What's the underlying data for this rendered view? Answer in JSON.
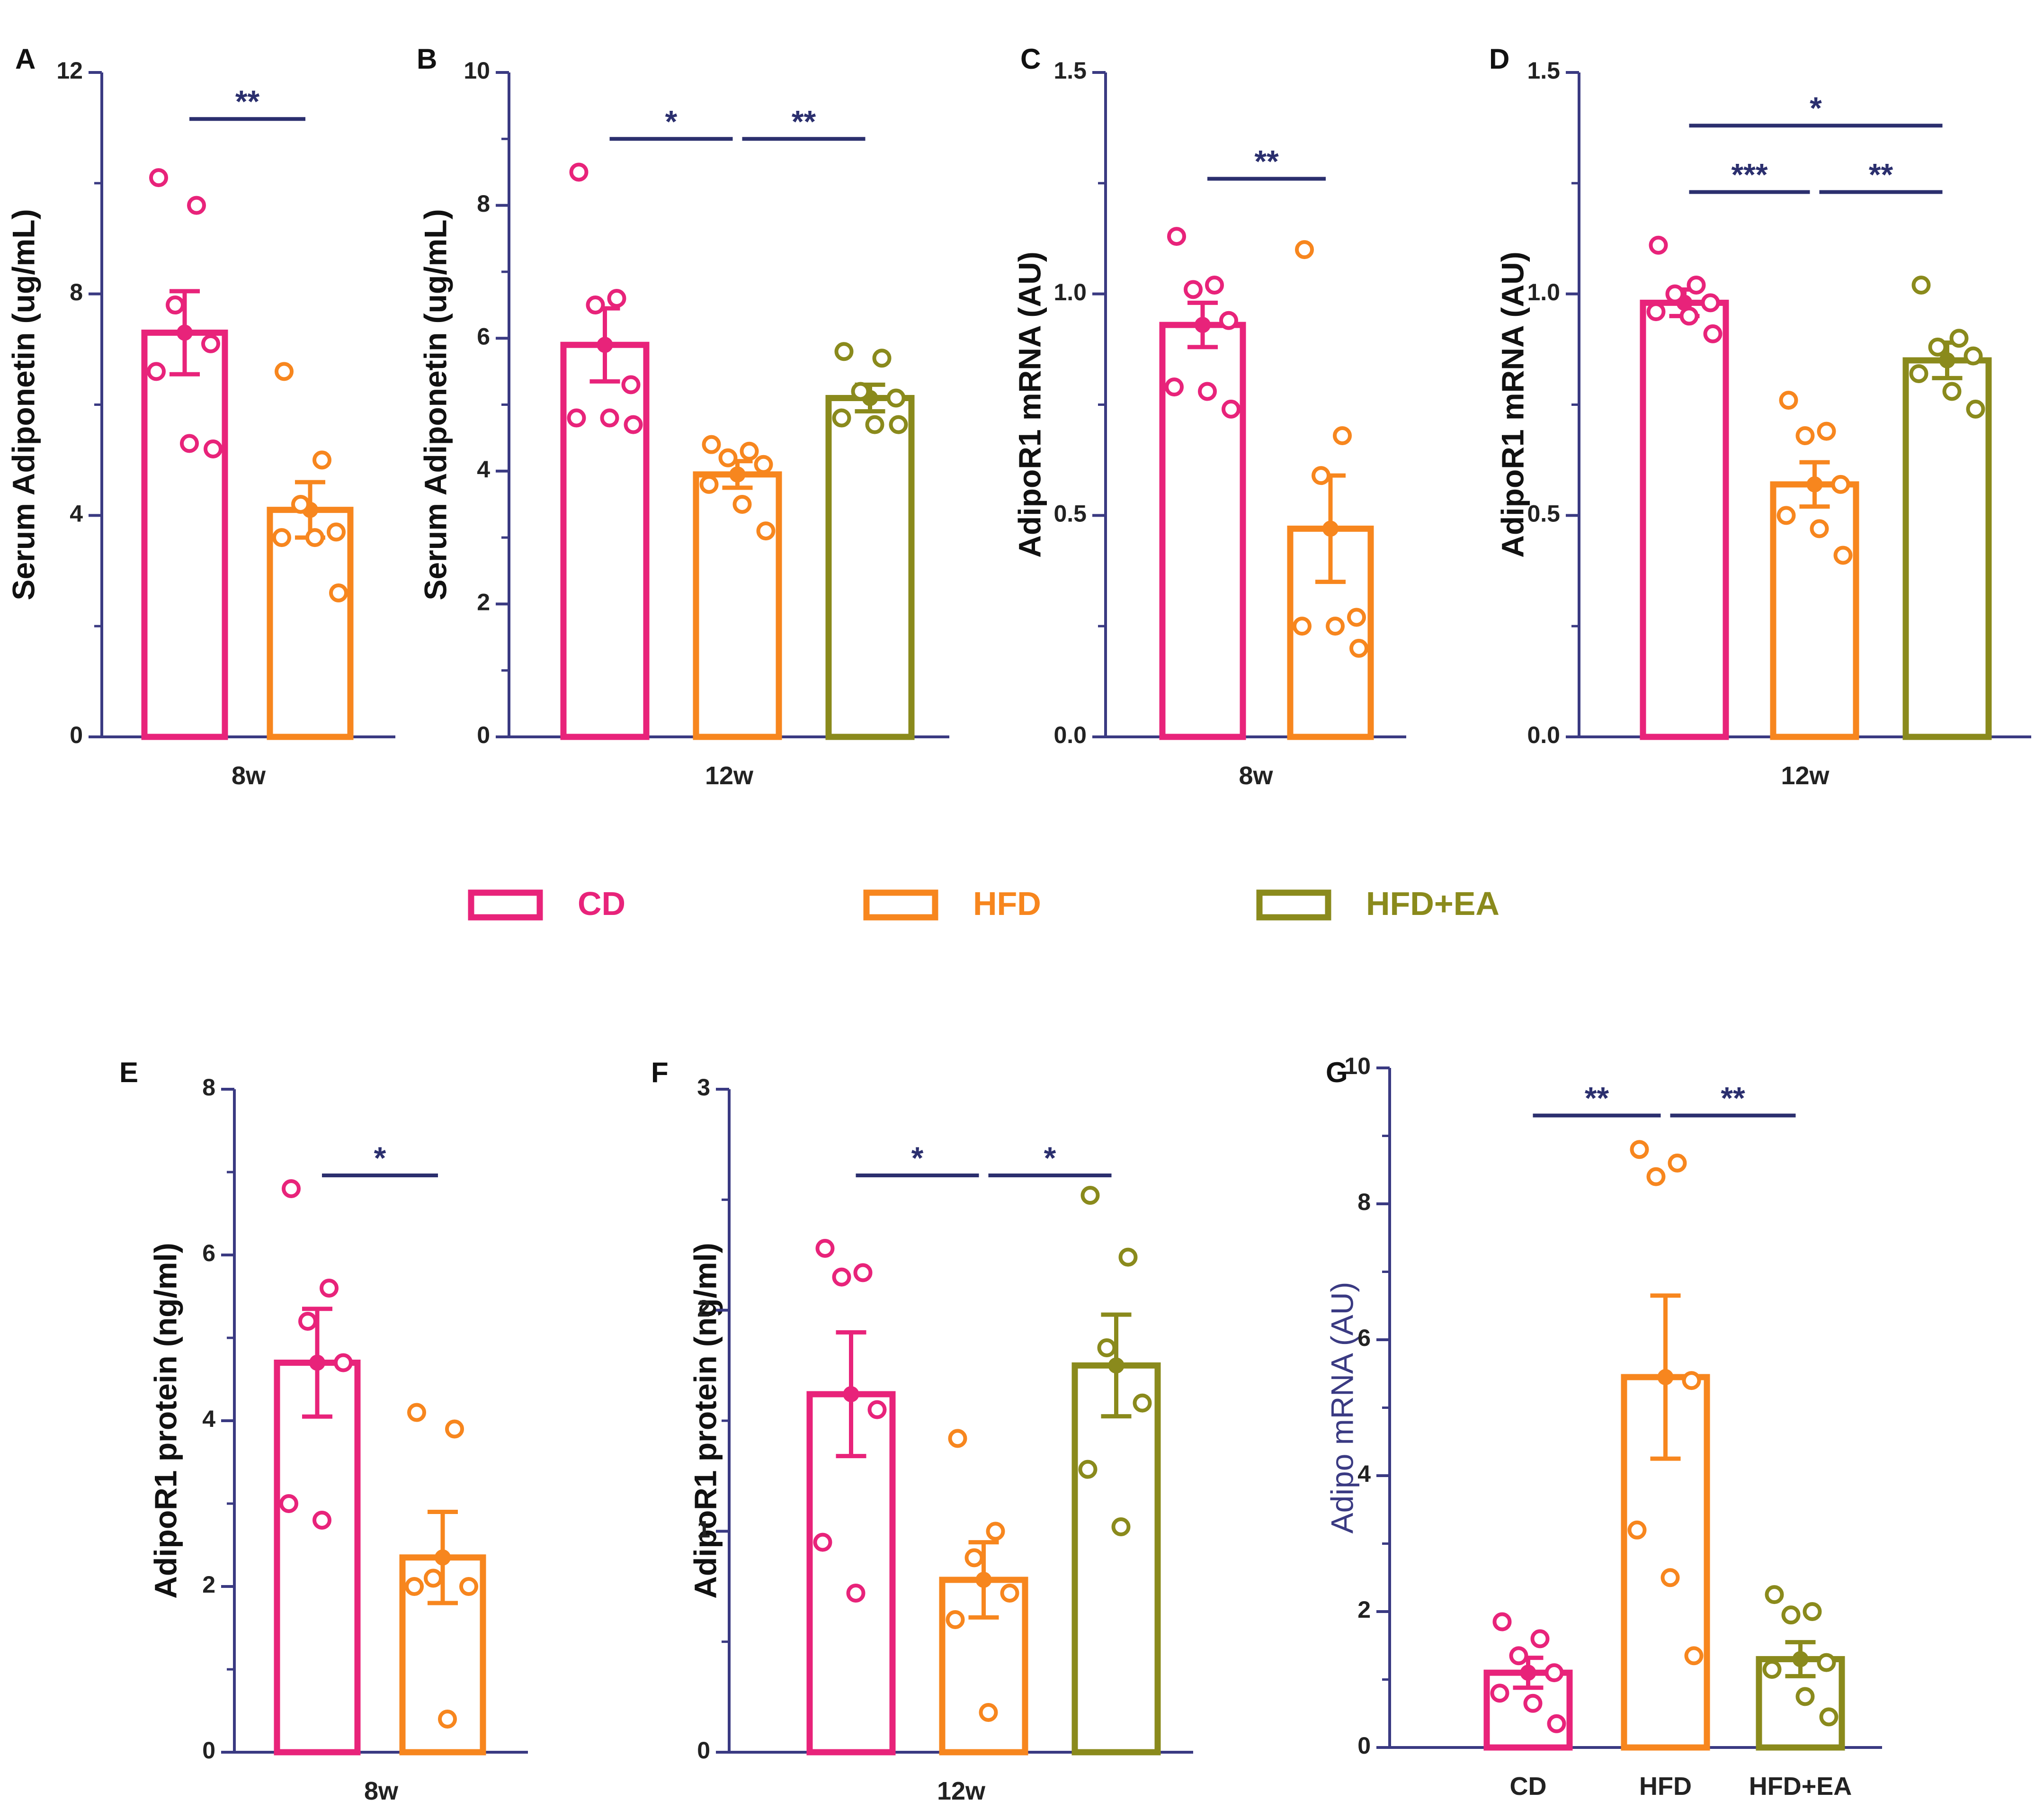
{
  "colors": {
    "CD": "#e8237a",
    "HFD": "#f7861e",
    "HFD+EA": "#8a8a1c",
    "axis": "#3a3a82",
    "sig": "#2b2f6e"
  },
  "legend": [
    {
      "label": "CD",
      "color": "#e8237a"
    },
    {
      "label": "HFD",
      "color": "#f7861e"
    },
    {
      "label": "HFD+EA",
      "color": "#8a8a1c"
    }
  ],
  "chart_data": [
    {
      "panel": "A",
      "type": "bar",
      "ylabel": "Serum Adiponetin (ug/mL)",
      "ylim": [
        0,
        12
      ],
      "yticks": [
        "0",
        "4",
        "8",
        "12"
      ],
      "xlabel": "8w",
      "categories": [
        "CD",
        "HFD"
      ],
      "series": [
        {
          "name": "CD",
          "mean": 7.3,
          "sem": 0.75,
          "points": [
            10.1,
            9.6,
            7.8,
            7.1,
            6.6,
            5.3,
            5.2
          ]
        },
        {
          "name": "HFD",
          "mean": 4.1,
          "sem": 0.5,
          "points": [
            6.6,
            5.0,
            4.2,
            3.7,
            3.6,
            3.6,
            2.6
          ]
        }
      ],
      "significance": [
        {
          "from": 0,
          "to": 1,
          "label": "**"
        }
      ]
    },
    {
      "panel": "B",
      "type": "bar",
      "ylabel": "Serum Adiponetin (ug/mL)",
      "ylim": [
        0,
        10
      ],
      "yticks": [
        "0",
        "2",
        "4",
        "6",
        "8",
        "10"
      ],
      "xlabel": "12w",
      "categories": [
        "CD",
        "HFD",
        "HFD+EA"
      ],
      "series": [
        {
          "name": "CD",
          "mean": 5.9,
          "sem": 0.55,
          "points": [
            8.5,
            6.6,
            6.5,
            5.3,
            4.8,
            4.8,
            4.7
          ]
        },
        {
          "name": "HFD",
          "mean": 3.95,
          "sem": 0.2,
          "points": [
            4.4,
            4.3,
            4.2,
            4.1,
            3.8,
            3.5,
            3.1
          ]
        },
        {
          "name": "HFD+EA",
          "mean": 5.1,
          "sem": 0.2,
          "points": [
            5.8,
            5.7,
            5.2,
            5.1,
            4.8,
            4.7,
            4.7
          ]
        }
      ],
      "significance": [
        {
          "from": 0,
          "to": 1,
          "label": "*"
        },
        {
          "from": 1,
          "to": 2,
          "label": "**"
        }
      ]
    },
    {
      "panel": "C",
      "type": "bar",
      "ylabel": "AdipoR1 mRNA (AU)",
      "ylim": [
        0,
        1.5
      ],
      "yticks": [
        "0.0",
        "0.5",
        "1.0",
        "1.5"
      ],
      "xlabel": "8w",
      "categories": [
        "CD",
        "HFD"
      ],
      "series": [
        {
          "name": "CD",
          "mean": 0.93,
          "sem": 0.05,
          "points": [
            1.13,
            1.02,
            1.01,
            0.94,
            0.79,
            0.78,
            0.74
          ]
        },
        {
          "name": "HFD",
          "mean": 0.47,
          "sem": 0.12,
          "points": [
            1.1,
            0.68,
            0.59,
            0.27,
            0.25,
            0.25,
            0.2
          ]
        }
      ],
      "significance": [
        {
          "from": 0,
          "to": 1,
          "label": "**"
        }
      ]
    },
    {
      "panel": "D",
      "type": "bar",
      "ylabel": "AdipoR1 mRNA (AU)",
      "ylim": [
        0,
        1.5
      ],
      "yticks": [
        "0.0",
        "0.5",
        "1.0",
        "1.5"
      ],
      "xlabel": "12w",
      "categories": [
        "CD",
        "HFD",
        "HFD+EA"
      ],
      "series": [
        {
          "name": "CD",
          "mean": 0.98,
          "sem": 0.03,
          "points": [
            1.11,
            1.02,
            1.0,
            0.98,
            0.96,
            0.95,
            0.91
          ]
        },
        {
          "name": "HFD",
          "mean": 0.57,
          "sem": 0.05,
          "points": [
            0.76,
            0.69,
            0.68,
            0.57,
            0.5,
            0.47,
            0.41
          ]
        },
        {
          "name": "HFD+EA",
          "mean": 0.85,
          "sem": 0.04,
          "points": [
            1.02,
            0.9,
            0.88,
            0.86,
            0.82,
            0.78,
            0.74
          ]
        }
      ],
      "significance": [
        {
          "from": 0,
          "to": 2,
          "label": "*"
        },
        {
          "from": 0,
          "to": 1,
          "label": "***"
        },
        {
          "from": 1,
          "to": 2,
          "label": "**"
        }
      ]
    },
    {
      "panel": "E",
      "type": "bar",
      "ylabel": "AdipoR1 protein (ng/ml)",
      "ylim": [
        0,
        8
      ],
      "yticks": [
        "0",
        "2",
        "4",
        "6",
        "8"
      ],
      "xlabel": "8w",
      "categories": [
        "CD",
        "HFD"
      ],
      "series": [
        {
          "name": "CD",
          "mean": 4.7,
          "sem": 0.65,
          "points": [
            6.8,
            5.6,
            5.2,
            4.7,
            3.0,
            2.8
          ]
        },
        {
          "name": "HFD",
          "mean": 2.35,
          "sem": 0.55,
          "points": [
            4.1,
            3.9,
            2.1,
            2.0,
            2.0,
            0.4
          ]
        }
      ],
      "significance": [
        {
          "from": 0,
          "to": 1,
          "label": "*"
        }
      ]
    },
    {
      "panel": "F",
      "type": "bar",
      "ylabel": "AdipoR1 protein (ng/ml)",
      "ylim": [
        0,
        3
      ],
      "yticks": [
        "0",
        "1",
        "2",
        "3"
      ],
      "xlabel": "12w",
      "categories": [
        "CD",
        "HFD",
        "HFD+EA"
      ],
      "series": [
        {
          "name": "CD",
          "mean": 1.62,
          "sem": 0.28,
          "points": [
            2.28,
            2.17,
            2.15,
            1.55,
            0.95,
            0.72
          ]
        },
        {
          "name": "HFD",
          "mean": 0.78,
          "sem": 0.17,
          "points": [
            1.42,
            1.0,
            0.88,
            0.72,
            0.6,
            0.18
          ]
        },
        {
          "name": "HFD+EA",
          "mean": 1.75,
          "sem": 0.23,
          "points": [
            2.52,
            2.24,
            1.83,
            1.58,
            1.28,
            1.02
          ]
        }
      ],
      "significance": [
        {
          "from": 0,
          "to": 1,
          "label": "*"
        },
        {
          "from": 1,
          "to": 2,
          "label": "*"
        }
      ]
    },
    {
      "panel": "G",
      "type": "bar",
      "ylabel": "Adipo mRNA (AU)",
      "ylim": [
        0,
        10
      ],
      "yticks": [
        "0",
        "2",
        "4",
        "6",
        "8",
        "10"
      ],
      "xlabel": "",
      "categories": [
        "CD",
        "HFD",
        "HFD+EA"
      ],
      "series": [
        {
          "name": "CD",
          "mean": 1.1,
          "sem": 0.22,
          "points": [
            1.85,
            1.6,
            1.35,
            1.1,
            0.8,
            0.65,
            0.35
          ]
        },
        {
          "name": "HFD",
          "mean": 5.45,
          "sem": 1.2,
          "points": [
            8.8,
            8.6,
            8.4,
            5.4,
            3.2,
            2.5,
            1.35
          ]
        },
        {
          "name": "HFD+EA",
          "mean": 1.3,
          "sem": 0.25,
          "points": [
            2.25,
            2.0,
            1.95,
            1.25,
            1.15,
            0.75,
            0.45
          ]
        }
      ],
      "significance": [
        {
          "from": 0,
          "to": 1,
          "label": "**"
        },
        {
          "from": 1,
          "to": 2,
          "label": "**"
        }
      ]
    }
  ]
}
